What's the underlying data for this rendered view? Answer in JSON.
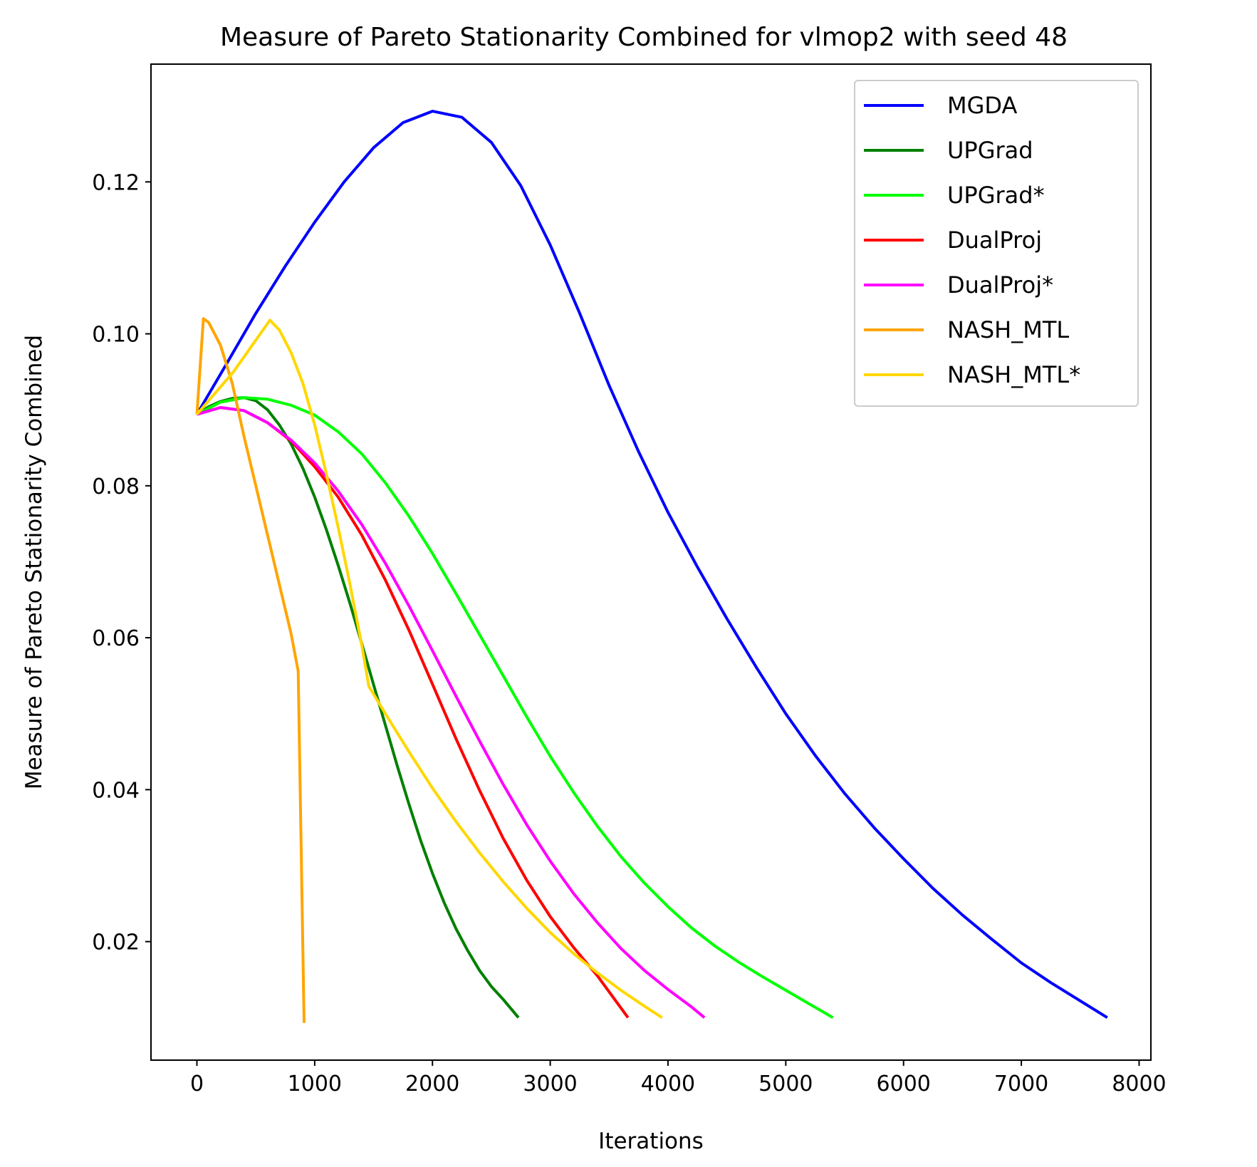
{
  "chart_data": {
    "type": "line",
    "title": "Measure of Pareto Stationarity Combined for vlmop2 with seed 48",
    "xlabel": "Iterations",
    "ylabel": "Measure of Pareto Stationarity Combined",
    "xlim": [
      -390,
      8100
    ],
    "ylim": [
      0.0044,
      0.1355
    ],
    "xticks": [
      0,
      1000,
      2000,
      3000,
      4000,
      5000,
      6000,
      7000,
      8000
    ],
    "xtick_labels": [
      "0",
      "1000",
      "2000",
      "3000",
      "4000",
      "5000",
      "6000",
      "7000",
      "8000"
    ],
    "yticks": [
      0.02,
      0.04,
      0.06,
      0.08,
      0.1,
      0.12
    ],
    "ytick_labels": [
      "0.02",
      "0.04",
      "0.06",
      "0.08",
      "0.10",
      "0.12"
    ],
    "grid": false,
    "legend": "top-right",
    "series": [
      {
        "name": "MGDA",
        "color": "#0000ff",
        "x": [
          0,
          250,
          500,
          750,
          1000,
          1250,
          1500,
          1750,
          2000,
          2250,
          2500,
          2750,
          3000,
          3250,
          3500,
          3750,
          4000,
          4250,
          4500,
          4750,
          5000,
          5250,
          5500,
          5750,
          6000,
          6250,
          6500,
          6750,
          7000,
          7250,
          7500,
          7730
        ],
        "y": [
          0.0894,
          0.096,
          0.1027,
          0.1089,
          0.1147,
          0.12,
          0.1245,
          0.1278,
          0.1293,
          0.1285,
          0.1252,
          0.1195,
          0.1117,
          0.1027,
          0.0932,
          0.0845,
          0.0765,
          0.0693,
          0.0625,
          0.0561,
          0.05,
          0.0445,
          0.0395,
          0.035,
          0.0309,
          0.027,
          0.0235,
          0.0203,
          0.0172,
          0.0146,
          0.0122,
          0.01
        ]
      },
      {
        "name": "UPGrad",
        "color": "#008000",
        "x": [
          0,
          100,
          200,
          300,
          400,
          500,
          600,
          700,
          800,
          900,
          1000,
          1100,
          1200,
          1300,
          1400,
          1500,
          1600,
          1700,
          1800,
          1900,
          2000,
          2100,
          2200,
          2300,
          2400,
          2500,
          2600,
          2730
        ],
        "y": [
          0.0894,
          0.0904,
          0.0911,
          0.0915,
          0.0916,
          0.0912,
          0.09,
          0.088,
          0.0855,
          0.0823,
          0.0785,
          0.0742,
          0.0695,
          0.0645,
          0.0592,
          0.0538,
          0.0485,
          0.0432,
          0.0381,
          0.0333,
          0.029,
          0.0251,
          0.0217,
          0.0188,
          0.0162,
          0.0141,
          0.0124,
          0.01
        ]
      },
      {
        "name": "UPGrad*",
        "color": "#00ff00",
        "x": [
          0,
          200,
          400,
          600,
          800,
          1000,
          1200,
          1400,
          1600,
          1800,
          2000,
          2200,
          2400,
          2600,
          2800,
          3000,
          3200,
          3400,
          3600,
          3800,
          4000,
          4200,
          4400,
          4600,
          4800,
          5000,
          5200,
          5400
        ],
        "y": [
          0.0894,
          0.091,
          0.0916,
          0.0914,
          0.0906,
          0.0893,
          0.0871,
          0.0842,
          0.0804,
          0.076,
          0.0711,
          0.0658,
          0.0604,
          0.055,
          0.0496,
          0.0444,
          0.0396,
          0.0352,
          0.0312,
          0.0277,
          0.0246,
          0.0218,
          0.0194,
          0.0173,
          0.0154,
          0.0136,
          0.0118,
          0.01
        ]
      },
      {
        "name": "DualProj",
        "color": "#ff0000",
        "x": [
          0,
          200,
          400,
          600,
          800,
          1000,
          1200,
          1400,
          1600,
          1800,
          2000,
          2200,
          2400,
          2600,
          2800,
          3000,
          3200,
          3400,
          3660
        ],
        "y": [
          0.0894,
          0.0903,
          0.0899,
          0.0883,
          0.0859,
          0.0825,
          0.0785,
          0.0735,
          0.0676,
          0.061,
          0.0539,
          0.0467,
          0.0399,
          0.0336,
          0.0281,
          0.0233,
          0.0192,
          0.0155,
          0.01
        ]
      },
      {
        "name": "DualProj*",
        "color": "#ff00ff",
        "x": [
          0,
          200,
          400,
          600,
          800,
          1000,
          1200,
          1400,
          1600,
          1800,
          2000,
          2200,
          2400,
          2600,
          2800,
          3000,
          3200,
          3400,
          3600,
          3800,
          4000,
          4200,
          4310
        ],
        "y": [
          0.0894,
          0.0903,
          0.0899,
          0.0883,
          0.086,
          0.083,
          0.0793,
          0.0749,
          0.0698,
          0.0642,
          0.0583,
          0.0523,
          0.0464,
          0.0407,
          0.0354,
          0.0306,
          0.0263,
          0.0225,
          0.0191,
          0.0162,
          0.0137,
          0.0114,
          0.01
        ]
      },
      {
        "name": "NASH_MTL",
        "color": "#ffa500",
        "x": [
          0,
          55,
          100,
          200,
          300,
          400,
          500,
          600,
          700,
          800,
          860,
          910
        ],
        "y": [
          0.0894,
          0.102,
          0.1015,
          0.0985,
          0.0935,
          0.0865,
          0.08,
          0.0735,
          0.067,
          0.0605,
          0.0556,
          0.0093
        ]
      },
      {
        "name": "NASH_MTL*",
        "color": "#ffd700",
        "x": [
          0,
          310,
          620,
          700,
          800,
          900,
          1000,
          1100,
          1200,
          1300,
          1400,
          1460,
          1600,
          1800,
          2000,
          2200,
          2400,
          2600,
          2800,
          3000,
          3200,
          3400,
          3600,
          3800,
          3950
        ],
        "y": [
          0.0894,
          0.095,
          0.1018,
          0.1005,
          0.0975,
          0.0935,
          0.088,
          0.0815,
          0.0745,
          0.067,
          0.059,
          0.0536,
          0.05,
          0.045,
          0.0402,
          0.0358,
          0.0317,
          0.0279,
          0.0244,
          0.0212,
          0.0184,
          0.0159,
          0.0136,
          0.0115,
          0.01
        ]
      }
    ]
  }
}
